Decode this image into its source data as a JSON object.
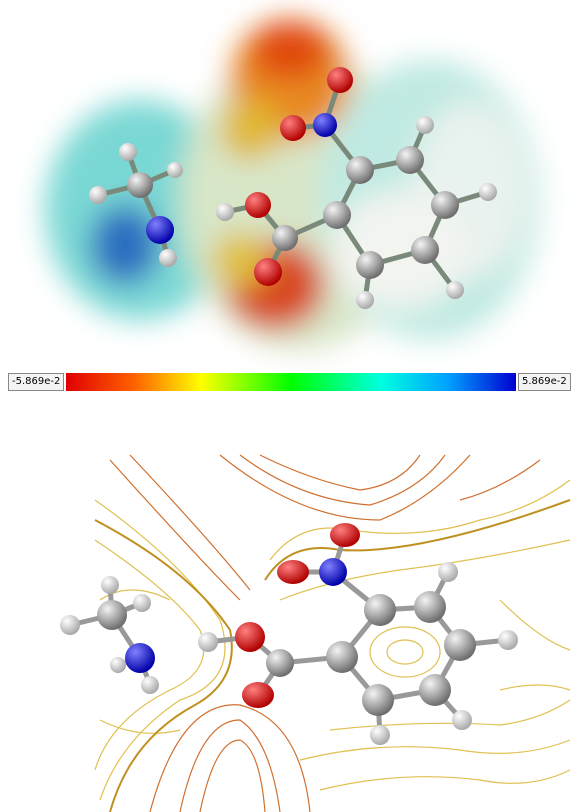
{
  "colorbar": {
    "min_label": "-5.869e-2",
    "max_label": "5.869e-2"
  }
}
